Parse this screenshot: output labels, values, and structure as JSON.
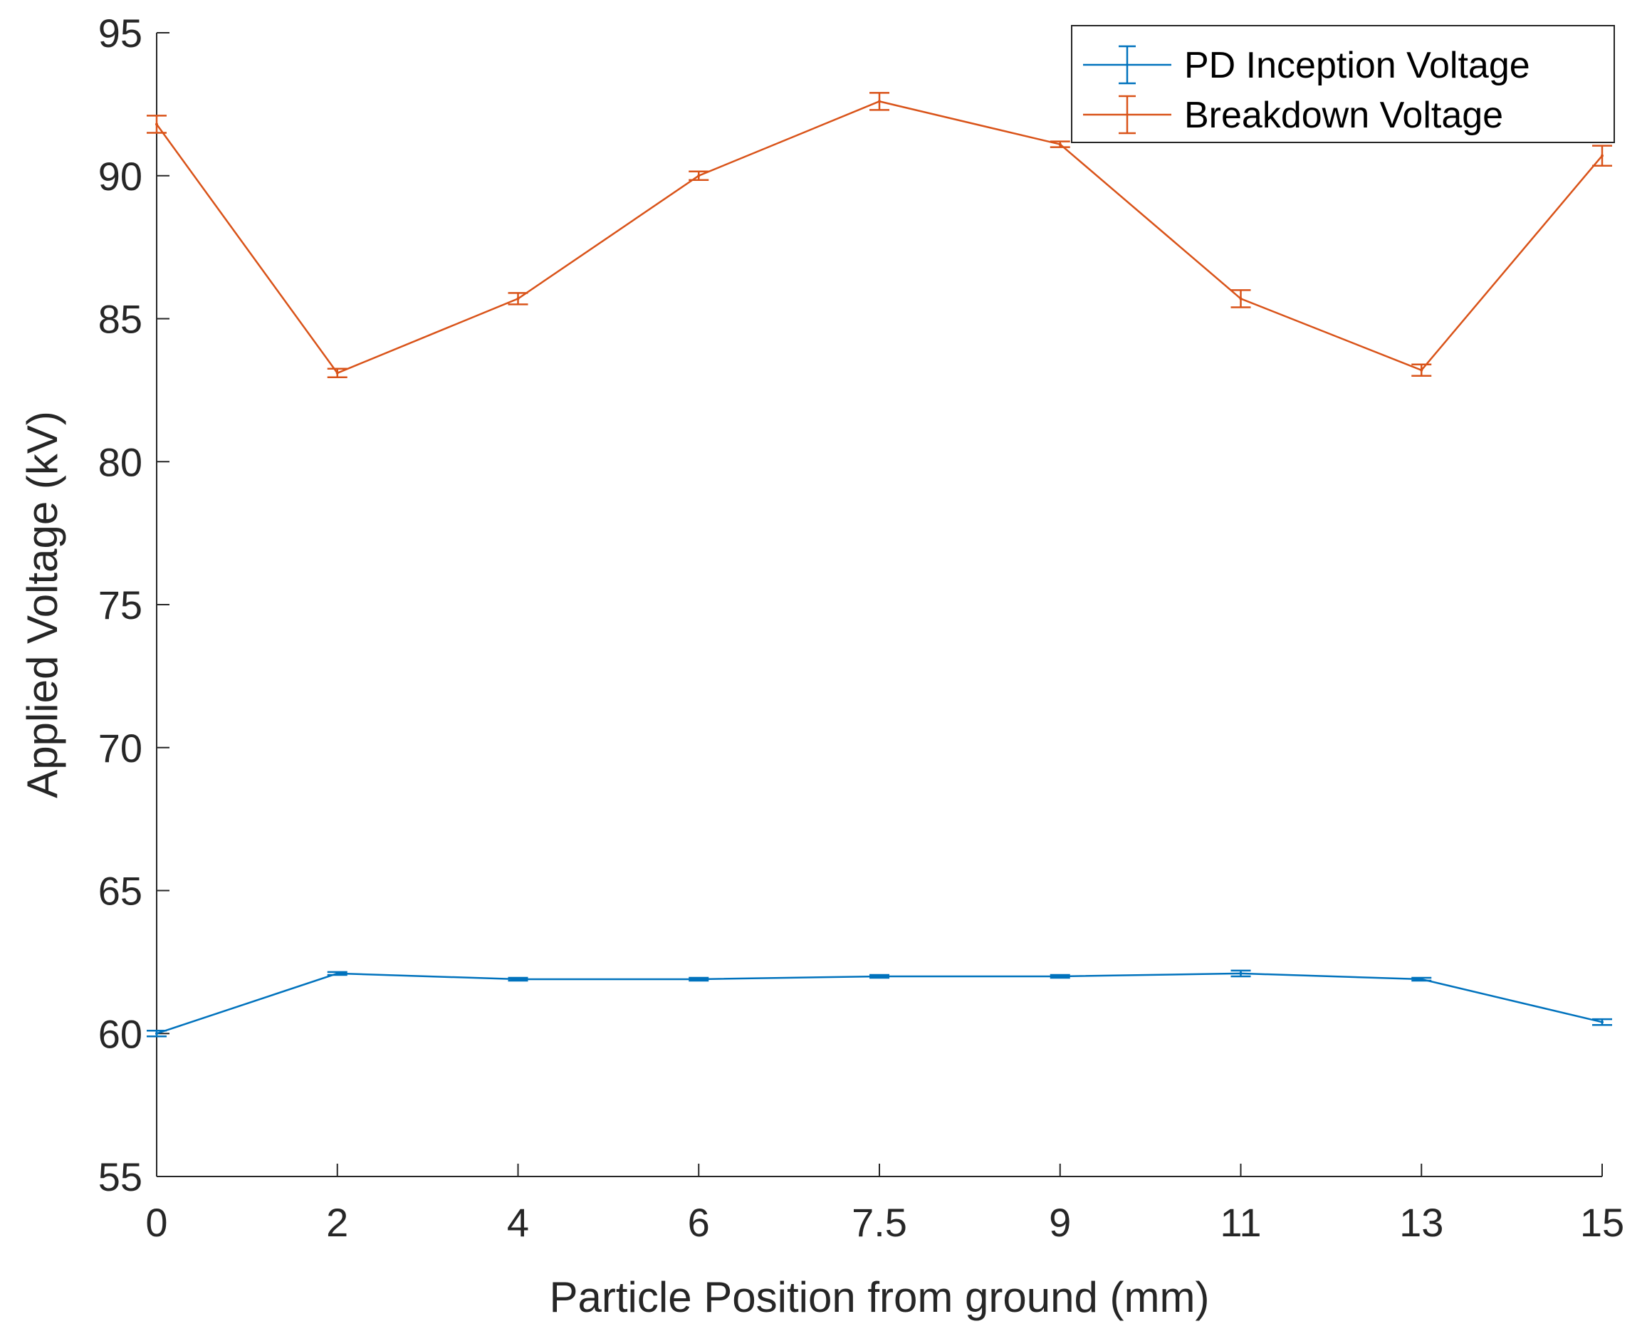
{
  "chart_data": {
    "type": "line",
    "title": "",
    "xlabel": "Particle Position from ground (mm)",
    "ylabel": "Applied Voltage (kV)",
    "categories": [
      "0",
      "2",
      "4",
      "6",
      "7.5",
      "9",
      "11",
      "13",
      "15"
    ],
    "ylim": [
      55,
      95
    ],
    "yticks": [
      55,
      60,
      65,
      70,
      75,
      80,
      85,
      90,
      95
    ],
    "grid": false,
    "legend_position": "top-right",
    "series": [
      {
        "name": "PD Inception Voltage",
        "color": "#0072BD",
        "values": [
          60.0,
          62.1,
          61.9,
          61.9,
          62.0,
          62.0,
          62.1,
          61.9,
          60.4
        ],
        "errors": [
          0.1,
          0.05,
          0.05,
          0.05,
          0.05,
          0.05,
          0.1,
          0.05,
          0.1
        ]
      },
      {
        "name": "Breakdown Voltage",
        "color": "#D95319",
        "values": [
          91.8,
          83.1,
          85.7,
          90.0,
          92.6,
          91.1,
          85.7,
          83.2,
          90.7
        ],
        "errors": [
          0.3,
          0.15,
          0.2,
          0.15,
          0.3,
          0.1,
          0.3,
          0.2,
          0.35
        ]
      }
    ]
  }
}
